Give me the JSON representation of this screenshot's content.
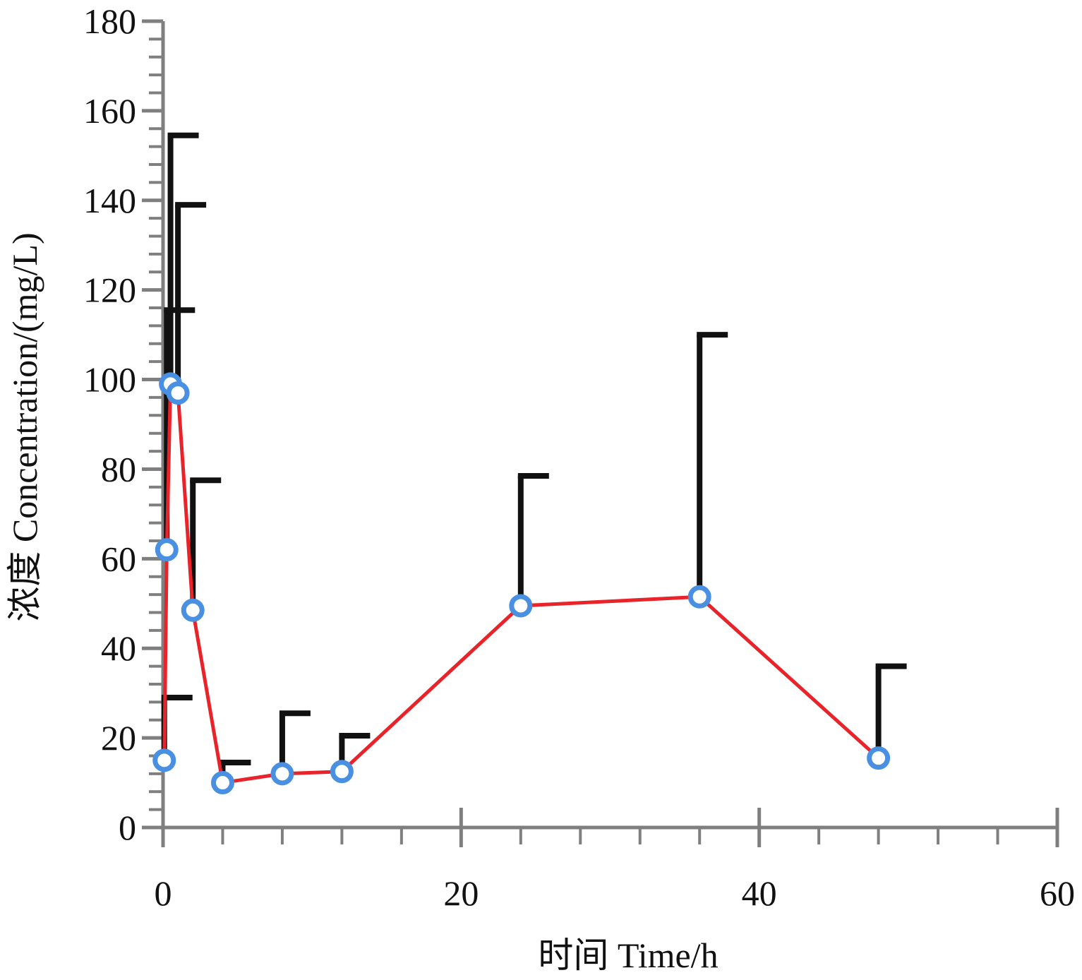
{
  "chart_data": {
    "type": "line",
    "xlabel": "时间 Time/h",
    "ylabel": "浓度 Concentration/(mg/L)",
    "xlim": [
      0,
      60
    ],
    "ylim": [
      0,
      180
    ],
    "x_ticks": [
      0,
      20,
      40,
      60
    ],
    "y_ticks": [
      0,
      20,
      40,
      60,
      80,
      100,
      120,
      140,
      160,
      180
    ],
    "x_minor_step": 4,
    "y_minor_step": 4,
    "grid": false,
    "error_bars": "upper",
    "series": [
      {
        "x": [
          0.083,
          0.25,
          0.5,
          1,
          2,
          4,
          8,
          12,
          24,
          36,
          48
        ],
        "y": [
          15,
          62,
          99,
          97,
          48.5,
          10,
          12,
          12.5,
          49.5,
          51.5,
          15.5
        ],
        "error_upper": [
          29,
          115.5,
          154.5,
          139,
          77.5,
          14.5,
          25.5,
          20.5,
          78.5,
          110,
          36
        ]
      }
    ],
    "colors": {
      "line": "#e8232a",
      "marker_edge": "#4a90e2",
      "marker_fill": "#ffffff",
      "error_bar": "#111111",
      "axis": "#7f7f7f"
    }
  }
}
